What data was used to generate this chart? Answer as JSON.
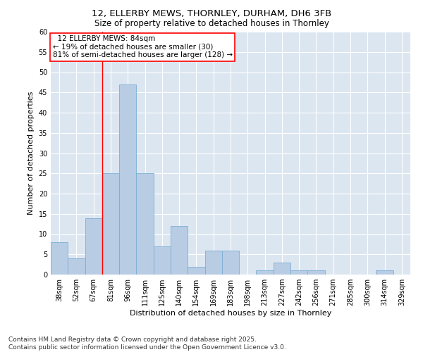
{
  "title1": "12, ELLERBY MEWS, THORNLEY, DURHAM, DH6 3FB",
  "title2": "Size of property relative to detached houses in Thornley",
  "xlabel": "Distribution of detached houses by size in Thornley",
  "ylabel": "Number of detached properties",
  "categories": [
    "38sqm",
    "52sqm",
    "67sqm",
    "81sqm",
    "96sqm",
    "111sqm",
    "125sqm",
    "140sqm",
    "154sqm",
    "169sqm",
    "183sqm",
    "198sqm",
    "213sqm",
    "227sqm",
    "242sqm",
    "256sqm",
    "271sqm",
    "285sqm",
    "300sqm",
    "314sqm",
    "329sqm"
  ],
  "values": [
    8,
    4,
    14,
    25,
    47,
    25,
    7,
    12,
    2,
    6,
    6,
    0,
    1,
    3,
    1,
    1,
    0,
    0,
    0,
    1,
    0
  ],
  "bar_color": "#b8cce4",
  "bar_edge_color": "#7bafd4",
  "bg_color": "#dce6f1",
  "grid_color": "#ffffff",
  "property_label": "12 ELLERBY MEWS: 84sqm",
  "pct_smaller": "19% of detached houses are smaller (30)",
  "pct_larger": "81% of semi-detached houses are larger (128)",
  "vline_bin_index": 3,
  "ylim": [
    0,
    60
  ],
  "yticks": [
    0,
    5,
    10,
    15,
    20,
    25,
    30,
    35,
    40,
    45,
    50,
    55,
    60
  ],
  "footer": "Contains HM Land Registry data © Crown copyright and database right 2025.\nContains public sector information licensed under the Open Government Licence v3.0.",
  "title1_fontsize": 9.5,
  "title2_fontsize": 8.5,
  "xlabel_fontsize": 8,
  "ylabel_fontsize": 8,
  "tick_fontsize": 7,
  "footer_fontsize": 6.5,
  "annot_fontsize": 7.5
}
